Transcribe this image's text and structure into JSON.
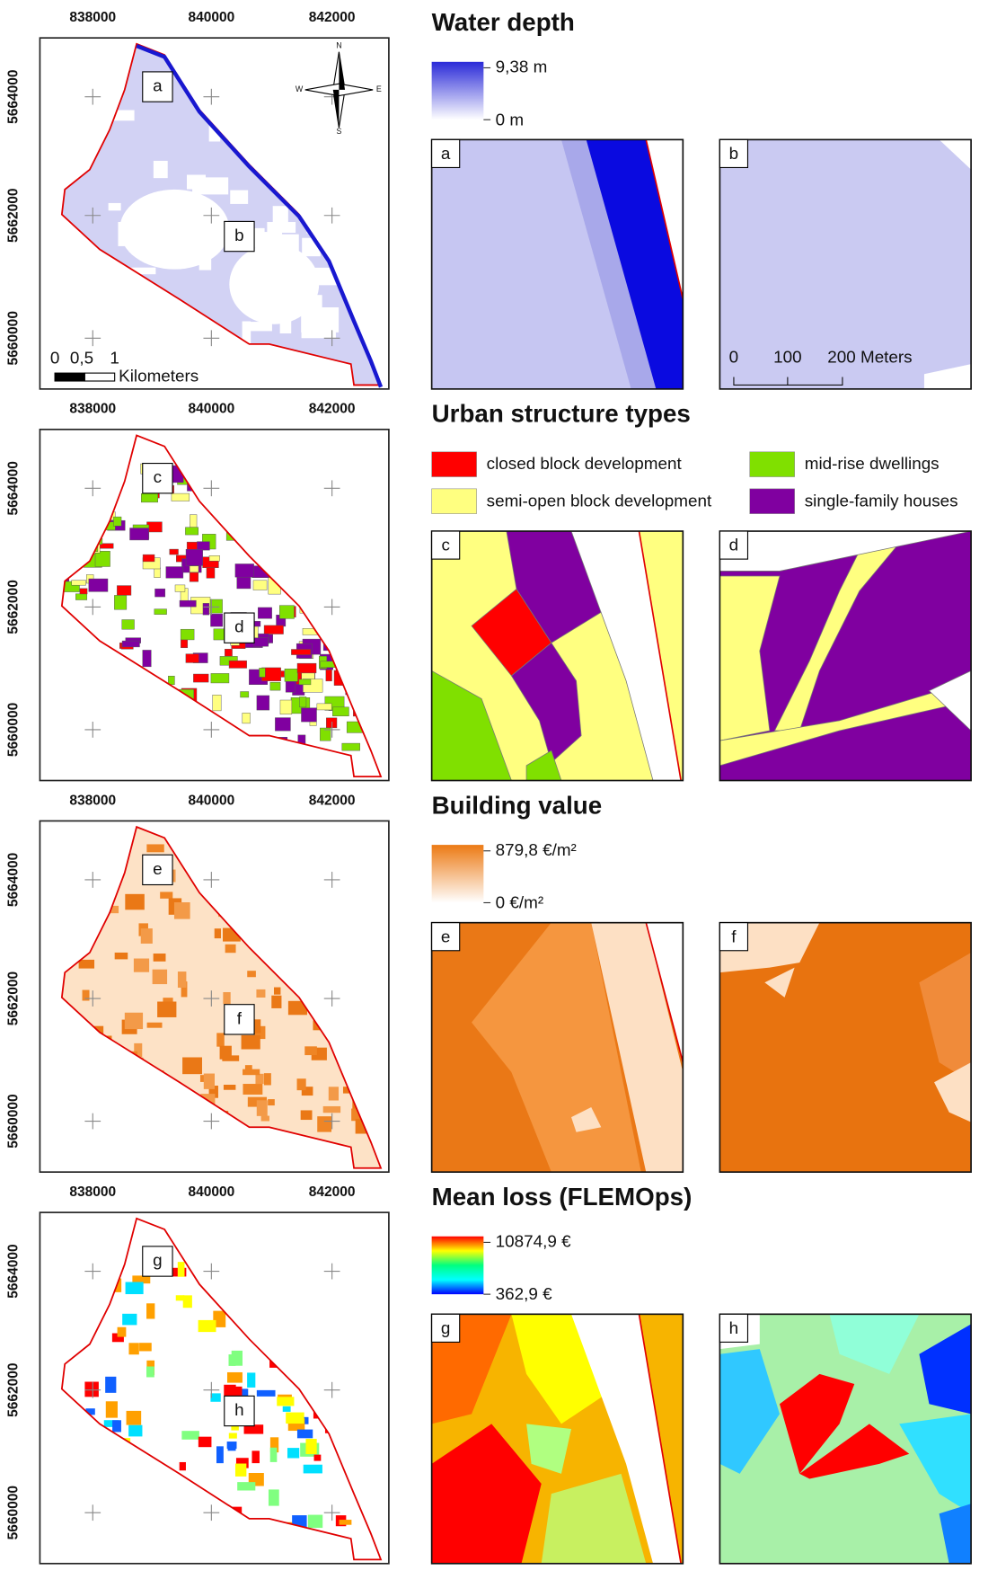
{
  "map_axes": {
    "x_ticks": [
      "838000",
      "840000",
      "842000"
    ],
    "y_ticks": [
      "5664000",
      "5662000",
      "5660000"
    ]
  },
  "north_arrow": {
    "n": "N",
    "e": "E",
    "s": "S",
    "w": "W"
  },
  "scale_bar": {
    "labels": [
      "0",
      "0,5",
      "1"
    ],
    "unit": "Kilometers"
  },
  "inset_scale_bar": {
    "labels": [
      "0",
      "100",
      "200 Meters"
    ]
  },
  "panels": [
    {
      "title": "Water depth",
      "legend": {
        "max": "9,38 m",
        "min": "0 m",
        "colors": [
          "#2a2ad8",
          "#ffffff"
        ]
      },
      "map_labels": [
        "a",
        "b"
      ]
    },
    {
      "title": "Urban structure types",
      "legend": {
        "entries": [
          {
            "label": "closed block development",
            "color": "#ff0000"
          },
          {
            "label": "semi-open block development",
            "color": "#ffff80"
          },
          {
            "label": "mid-rise dwellings",
            "color": "#80e000"
          },
          {
            "label": "single-family houses",
            "color": "#8000a0"
          }
        ]
      },
      "map_labels": [
        "c",
        "d"
      ]
    },
    {
      "title": "Building value",
      "legend": {
        "max": "879,8 €/m²",
        "min": "0 €/m²",
        "colors": [
          "#ec7a14",
          "#ffffff"
        ]
      },
      "map_labels": [
        "e",
        "f"
      ]
    },
    {
      "title": "Mean loss (FLEMOps)",
      "legend": {
        "max": "10874,9 €",
        "min": "362,9 €",
        "colors": [
          "#ff0000",
          "#ffff00",
          "#00ff80",
          "#00ffff",
          "#0000ff"
        ]
      },
      "map_labels": [
        "g",
        "h"
      ]
    }
  ]
}
